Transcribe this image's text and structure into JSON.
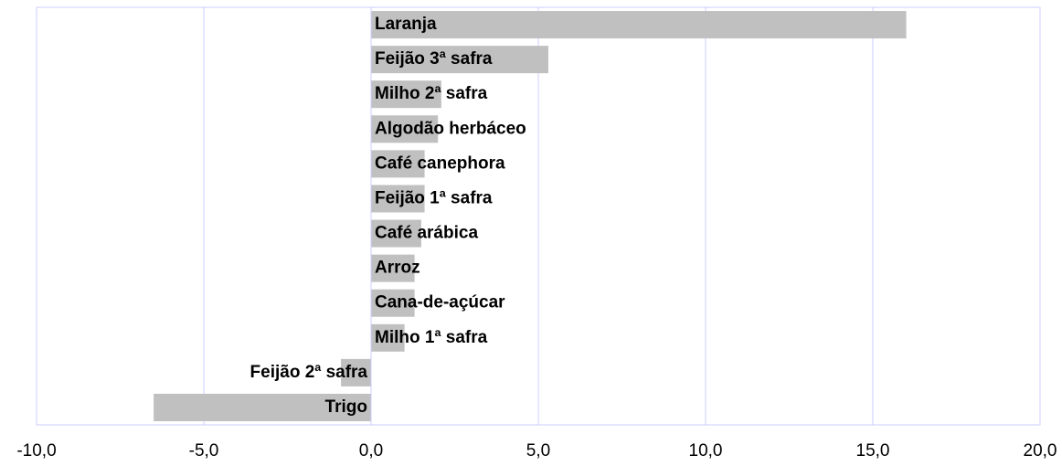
{
  "chart_data": {
    "type": "hbar",
    "categories": [
      "Laranja",
      "Feijão 3ª safra",
      "Milho 2ª safra",
      "Algodão herbáceo",
      "Café canephora",
      "Feijão 1ª safra",
      "Café arábica",
      "Arroz",
      "Cana-de-açúcar",
      "Milho 1ª safra",
      "Feijão 2ª safra",
      "Trigo"
    ],
    "values": [
      16.0,
      5.3,
      2.1,
      2.0,
      1.6,
      1.6,
      1.5,
      1.3,
      1.3,
      1.0,
      -0.9,
      -6.5
    ],
    "color": "#c0c0c0",
    "xlim": [
      -10,
      20
    ],
    "xticks": [
      {
        "value": -10,
        "label": "-10,0"
      },
      {
        "value": -5,
        "label": "-5,0"
      },
      {
        "value": 0,
        "label": "0,0"
      },
      {
        "value": 5,
        "label": "5,0"
      },
      {
        "value": 10,
        "label": "10,0"
      },
      {
        "value": 15,
        "label": "15,0"
      },
      {
        "value": 20,
        "label": "20,0"
      }
    ],
    "grid": true
  }
}
